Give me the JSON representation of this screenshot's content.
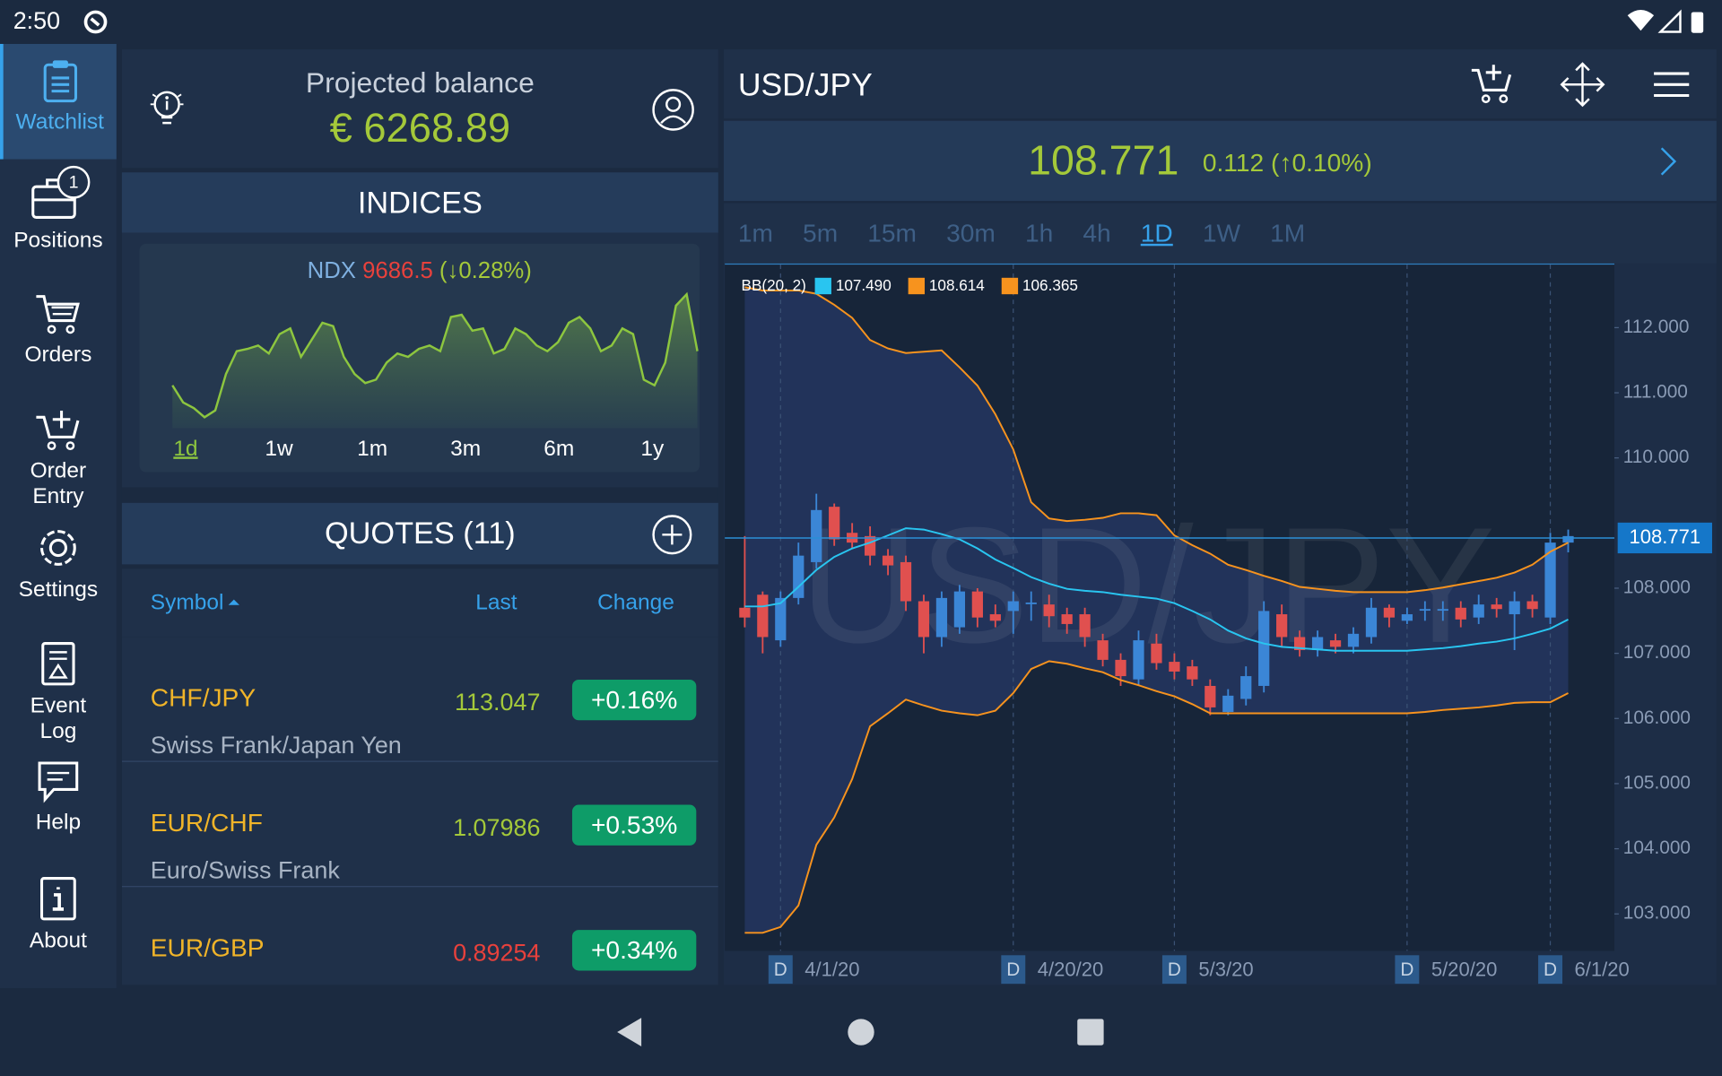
{
  "status_bar": {
    "time": "2:50"
  },
  "sidebar": {
    "items": [
      {
        "label": "Watchlist",
        "active": true
      },
      {
        "label": "Positions",
        "badge": "1"
      },
      {
        "label": "Orders"
      },
      {
        "label": "Order Entry"
      },
      {
        "label": "Settings"
      },
      {
        "label": "Event Log"
      },
      {
        "label": "Help"
      },
      {
        "label": "About"
      }
    ]
  },
  "balance": {
    "label": "Projected balance",
    "amount": "€ 6268.89"
  },
  "indices": {
    "title": "INDICES",
    "symbol": "NDX",
    "last": "9686.5",
    "change": "(↓0.28%)",
    "chart_data": {
      "type": "area",
      "color": "#8dc63f",
      "values": [
        9626.5,
        9596.5,
        9586.5,
        9570.5,
        9582.5,
        9646.5,
        9686.5,
        9690.5,
        9696.5,
        9682.5,
        9716.5,
        9726.5,
        9676.5,
        9706.5,
        9736.5,
        9730.5,
        9676.5,
        9646.5,
        9630.5,
        9636.5,
        9666.5,
        9682.5,
        9676.5,
        9690.5,
        9696.5,
        9686.5,
        9746.5,
        9750.5,
        9722.5,
        9726.5,
        9682.5,
        9690.5,
        9726.5,
        9716.5,
        9696.5,
        9686.5,
        9702.5,
        9736.5,
        9746.5,
        9726.5,
        9686.5,
        9696.5,
        9726.5,
        9716.5,
        9636.5,
        9626.5,
        9666.5,
        9766.5,
        9786.5,
        9686.5
      ],
      "ranges": [
        "1d",
        "1w",
        "1m",
        "3m",
        "6m",
        "1y"
      ],
      "active_range": 0
    }
  },
  "quotes": {
    "title": "QUOTES (11)",
    "columns": [
      "Symbol",
      "Last",
      "Change"
    ],
    "rows": [
      {
        "symbol": "CHF/JPY",
        "name": "Swiss Frank/Japan Yen",
        "last": "113.047",
        "last_color": "#a4c93a",
        "change": "+0.16%"
      },
      {
        "symbol": "EUR/CHF",
        "name": "Euro/Swiss Frank",
        "last": "1.07986",
        "last_color": "#a4c93a",
        "change": "+0.53%"
      },
      {
        "symbol": "EUR/GBP",
        "name": "",
        "last": "0.89254",
        "last_color": "#e8413c",
        "change": "+0.34%"
      }
    ]
  },
  "instrument": {
    "title": "USD/JPY",
    "price": "108.771",
    "change": "0.112 (↑0.10%)",
    "timeframes": [
      "1m",
      "5m",
      "15m",
      "30m",
      "1h",
      "4h",
      "1D",
      "1W",
      "1M"
    ],
    "active_timeframe": 6,
    "chart_data": {
      "type": "candlestick",
      "watermark": "USD/JPY",
      "period_marker": "D",
      "up_color": "#3b86d6",
      "down_color": "#e0504f",
      "categories": [
        null,
        null,
        "4/1/20",
        null,
        null,
        null,
        null,
        null,
        null,
        null,
        null,
        null,
        null,
        null,
        null,
        "4/20/20",
        null,
        null,
        null,
        null,
        null,
        null,
        null,
        null,
        "5/3/20",
        null,
        null,
        null,
        null,
        null,
        null,
        null,
        null,
        null,
        null,
        null,
        null,
        "5/20/20",
        null,
        null,
        null,
        null,
        null,
        null,
        null,
        "6/1/20",
        null
      ],
      "open": [
        107.7,
        107.9,
        107.2,
        107.85,
        108.4,
        109.25,
        108.85,
        108.8,
        108.5,
        108.4,
        107.8,
        107.25,
        107.4,
        107.95,
        107.6,
        107.65,
        107.78,
        107.75,
        107.6,
        107.6,
        107.2,
        106.9,
        106.6,
        107.15,
        106.87,
        106.8,
        106.5,
        106.1,
        106.3,
        106.5,
        107.6,
        107.25,
        107.05,
        107.2,
        107.1,
        107.25,
        107.7,
        107.5,
        107.68,
        107.68,
        107.7,
        107.55,
        107.75,
        107.6,
        107.8,
        107.55,
        108.7
      ],
      "high": [
        108.8,
        107.95,
        107.95,
        108.7,
        109.45,
        109.3,
        109.0,
        108.95,
        108.6,
        108.5,
        107.9,
        107.95,
        108.05,
        108.0,
        107.75,
        107.95,
        107.95,
        107.9,
        107.7,
        107.7,
        107.3,
        107.0,
        107.35,
        107.3,
        107.0,
        106.9,
        106.6,
        106.45,
        106.8,
        107.8,
        107.75,
        107.35,
        107.35,
        107.3,
        107.4,
        107.85,
        107.75,
        107.7,
        107.8,
        107.8,
        107.8,
        107.9,
        107.85,
        107.95,
        107.9,
        108.85,
        108.9
      ],
      "low": [
        107.4,
        107.0,
        107.1,
        107.75,
        108.3,
        108.65,
        108.6,
        108.35,
        108.2,
        107.65,
        107.0,
        107.1,
        107.3,
        107.4,
        107.4,
        107.3,
        107.5,
        107.4,
        107.3,
        107.1,
        106.8,
        106.5,
        106.5,
        106.75,
        106.6,
        106.5,
        106.05,
        106.05,
        106.2,
        106.4,
        107.1,
        106.95,
        106.95,
        107.0,
        107.0,
        107.15,
        107.4,
        107.45,
        107.5,
        107.5,
        107.4,
        107.45,
        107.55,
        107.05,
        107.55,
        107.45,
        108.55
      ],
      "close": [
        107.55,
        107.25,
        107.85,
        108.5,
        109.2,
        108.75,
        108.7,
        108.5,
        108.35,
        107.8,
        107.25,
        107.85,
        107.95,
        107.55,
        107.5,
        107.8,
        107.78,
        107.57,
        107.45,
        107.25,
        106.9,
        106.65,
        107.2,
        106.85,
        106.72,
        106.6,
        106.17,
        106.35,
        106.65,
        107.65,
        107.25,
        107.05,
        107.25,
        107.1,
        107.3,
        107.7,
        107.55,
        107.6,
        107.68,
        107.68,
        107.52,
        107.75,
        107.68,
        107.8,
        107.68,
        108.7,
        108.8
      ],
      "indicator": {
        "label": "BB(20, 2)",
        "series": [
          {
            "name": "107.490",
            "color": "#29c5f0",
            "values": [
              107.72,
              107.72,
              107.77,
              108.02,
              108.28,
              108.48,
              108.61,
              108.7,
              108.81,
              108.92,
              108.9,
              108.83,
              108.75,
              108.61,
              108.44,
              108.31,
              108.17,
              108.07,
              107.99,
              107.96,
              107.94,
              107.9,
              107.87,
              107.84,
              107.77,
              107.65,
              107.52,
              107.35,
              107.23,
              107.15,
              107.1,
              107.08,
              107.06,
              107.04,
              107.04,
              107.04,
              107.04,
              107.04,
              107.06,
              107.08,
              107.11,
              107.15,
              107.18,
              107.23,
              107.3,
              107.38,
              107.52
            ]
          },
          {
            "name": "108.614",
            "color": "#f7931e",
            "values": [
              112.62,
              112.57,
              112.57,
              112.57,
              112.52,
              112.35,
              112.15,
              111.81,
              111.68,
              111.61,
              111.63,
              111.65,
              111.39,
              111.11,
              110.67,
              110.13,
              109.32,
              109.07,
              109.03,
              109.05,
              109.08,
              109.15,
              109.15,
              109.12,
              108.81,
              108.66,
              108.53,
              108.36,
              108.28,
              108.19,
              108.11,
              108.02,
              107.99,
              107.96,
              107.94,
              107.94,
              107.94,
              107.94,
              107.97,
              108.01,
              108.06,
              108.11,
              108.16,
              108.24,
              108.36,
              108.56,
              108.7
            ]
          },
          {
            "name": "106.365",
            "color": "#f7931e",
            "values": [
              102.71,
              102.71,
              102.8,
              103.13,
              104.06,
              104.48,
              105.07,
              105.88,
              106.08,
              106.29,
              106.2,
              106.12,
              106.08,
              106.05,
              106.12,
              106.39,
              106.76,
              106.88,
              106.84,
              106.77,
              106.71,
              106.59,
              106.51,
              106.42,
              106.34,
              106.22,
              106.08,
              106.08,
              106.08,
              106.08,
              106.08,
              106.08,
              106.08,
              106.08,
              106.08,
              106.08,
              106.08,
              106.08,
              106.1,
              106.13,
              106.15,
              106.17,
              106.2,
              106.24,
              106.25,
              106.25,
              106.39
            ]
          }
        ]
      },
      "current_price": 108.771,
      "ylim": [
        102.45,
        112.9
      ],
      "yticks": [
        {
          "value": 103,
          "label": "103.000"
        },
        {
          "value": 104,
          "label": "104.000"
        },
        {
          "value": 105,
          "label": "105.000"
        },
        {
          "value": 106,
          "label": "106.000"
        },
        {
          "value": 107,
          "label": "107.000"
        },
        {
          "value": 108,
          "label": "108.000"
        },
        {
          "value": 110,
          "label": "110.000"
        },
        {
          "value": 111,
          "label": "111.000"
        },
        {
          "value": 112,
          "label": "112.000"
        }
      ],
      "grid": false
    }
  }
}
